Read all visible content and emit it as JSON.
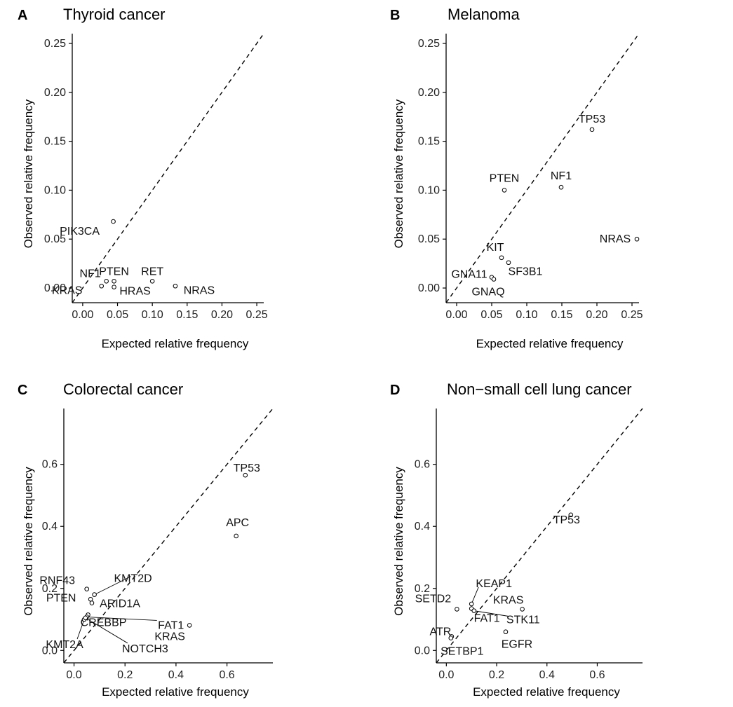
{
  "chart_data": [
    {
      "type": "scatter",
      "panel": "A",
      "title": "Thyroid cancer",
      "xlabel": "Expected relative frequency",
      "ylabel": "Observed relative frequency",
      "xlim": [
        -0.015,
        0.26
      ],
      "ylim": [
        -0.015,
        0.26
      ],
      "xticks": [
        "0.00",
        "0.05",
        "0.10",
        "0.15",
        "0.20",
        "0.25"
      ],
      "yticks": [
        "0.00",
        "0.05",
        "0.10",
        "0.15",
        "0.20",
        "0.25"
      ],
      "reference_line": "y = x (dashed)",
      "points": [
        {
          "label": "PIK3CA",
          "x": 0.044,
          "y": 0.068
        },
        {
          "label": "NF1",
          "x": 0.034,
          "y": 0.007
        },
        {
          "label": "PTEN",
          "x": 0.045,
          "y": 0.007
        },
        {
          "label": "RET",
          "x": 0.1,
          "y": 0.007
        },
        {
          "label": "KRAS",
          "x": 0.027,
          "y": 0.002
        },
        {
          "label": "HRAS",
          "x": 0.045,
          "y": 0.001
        },
        {
          "label": "NRAS",
          "x": 0.133,
          "y": 0.002
        }
      ]
    },
    {
      "type": "scatter",
      "panel": "B",
      "title": "Melanoma",
      "xlabel": "Expected relative frequency",
      "ylabel": "Observed relative frequency",
      "xlim": [
        -0.015,
        0.26
      ],
      "ylim": [
        -0.015,
        0.26
      ],
      "xticks": [
        "0.00",
        "0.05",
        "0.10",
        "0.15",
        "0.20",
        "0.25"
      ],
      "yticks": [
        "0.00",
        "0.05",
        "0.10",
        "0.15",
        "0.20",
        "0.25"
      ],
      "reference_line": "y = x (dashed)",
      "points": [
        {
          "label": "TP53",
          "x": 0.193,
          "y": 0.162
        },
        {
          "label": "NF1",
          "x": 0.149,
          "y": 0.103
        },
        {
          "label": "PTEN",
          "x": 0.068,
          "y": 0.1
        },
        {
          "label": "NRAS",
          "x": 0.257,
          "y": 0.05
        },
        {
          "label": "KIT",
          "x": 0.064,
          "y": 0.031
        },
        {
          "label": "SF3B1",
          "x": 0.074,
          "y": 0.026
        },
        {
          "label": "GNA11",
          "x": 0.05,
          "y": 0.011
        },
        {
          "label": "GNAQ",
          "x": 0.053,
          "y": 0.009
        }
      ]
    },
    {
      "type": "scatter",
      "panel": "C",
      "title": "Colorectal cancer",
      "xlabel": "Expected relative frequency",
      "ylabel": "Observed relative frequency",
      "xlim": [
        -0.04,
        0.78
      ],
      "ylim": [
        -0.04,
        0.78
      ],
      "xticks": [
        "0.0",
        "0.2",
        "0.4",
        "0.6"
      ],
      "yticks": [
        "0.0",
        "0.2",
        "0.4",
        "0.6"
      ],
      "reference_line": "y = x (dashed)",
      "points": [
        {
          "label": "TP53",
          "x": 0.672,
          "y": 0.565
        },
        {
          "label": "APC",
          "x": 0.636,
          "y": 0.369
        },
        {
          "label": "KRAS",
          "x": 0.453,
          "y": 0.081
        },
        {
          "label": "RNF43",
          "x": 0.05,
          "y": 0.198
        },
        {
          "label": "KMT2D",
          "x": 0.08,
          "y": 0.18
        },
        {
          "label": "PTEN",
          "x": 0.065,
          "y": 0.165
        },
        {
          "label": "ARID1A",
          "x": 0.07,
          "y": 0.153
        },
        {
          "label": "CREBBP",
          "x": 0.055,
          "y": 0.115
        },
        {
          "label": "FAT1",
          "x": 0.05,
          "y": 0.108
        },
        {
          "label": "KMT2A",
          "x": 0.04,
          "y": 0.1
        },
        {
          "label": "NOTCH3",
          "x": 0.045,
          "y": 0.105
        }
      ]
    },
    {
      "type": "scatter",
      "panel": "D",
      "title": "Non−small cell lung cancer",
      "xlabel": "Expected relative frequency",
      "ylabel": "Observed relative frequency",
      "xlim": [
        -0.04,
        0.78
      ],
      "ylim": [
        -0.04,
        0.78
      ],
      "xticks": [
        "0.0",
        "0.2",
        "0.4",
        "0.6"
      ],
      "yticks": [
        "0.0",
        "0.2",
        "0.4",
        "0.6"
      ],
      "reference_line": "y = x (dashed)",
      "points": [
        {
          "label": "TP53",
          "x": 0.495,
          "y": 0.437
        },
        {
          "label": "KRAS",
          "x": 0.302,
          "y": 0.133
        },
        {
          "label": "KEAP1",
          "x": 0.1,
          "y": 0.15
        },
        {
          "label": "SETD2",
          "x": 0.042,
          "y": 0.133
        },
        {
          "label": "FAT1",
          "x": 0.1,
          "y": 0.135
        },
        {
          "label": "STK11",
          "x": 0.11,
          "y": 0.128
        },
        {
          "label": "EGFR",
          "x": 0.236,
          "y": 0.06
        },
        {
          "label": "ATR",
          "x": 0.021,
          "y": 0.045
        },
        {
          "label": "SETBP1",
          "x": 0.018,
          "y": 0.04
        }
      ]
    }
  ]
}
